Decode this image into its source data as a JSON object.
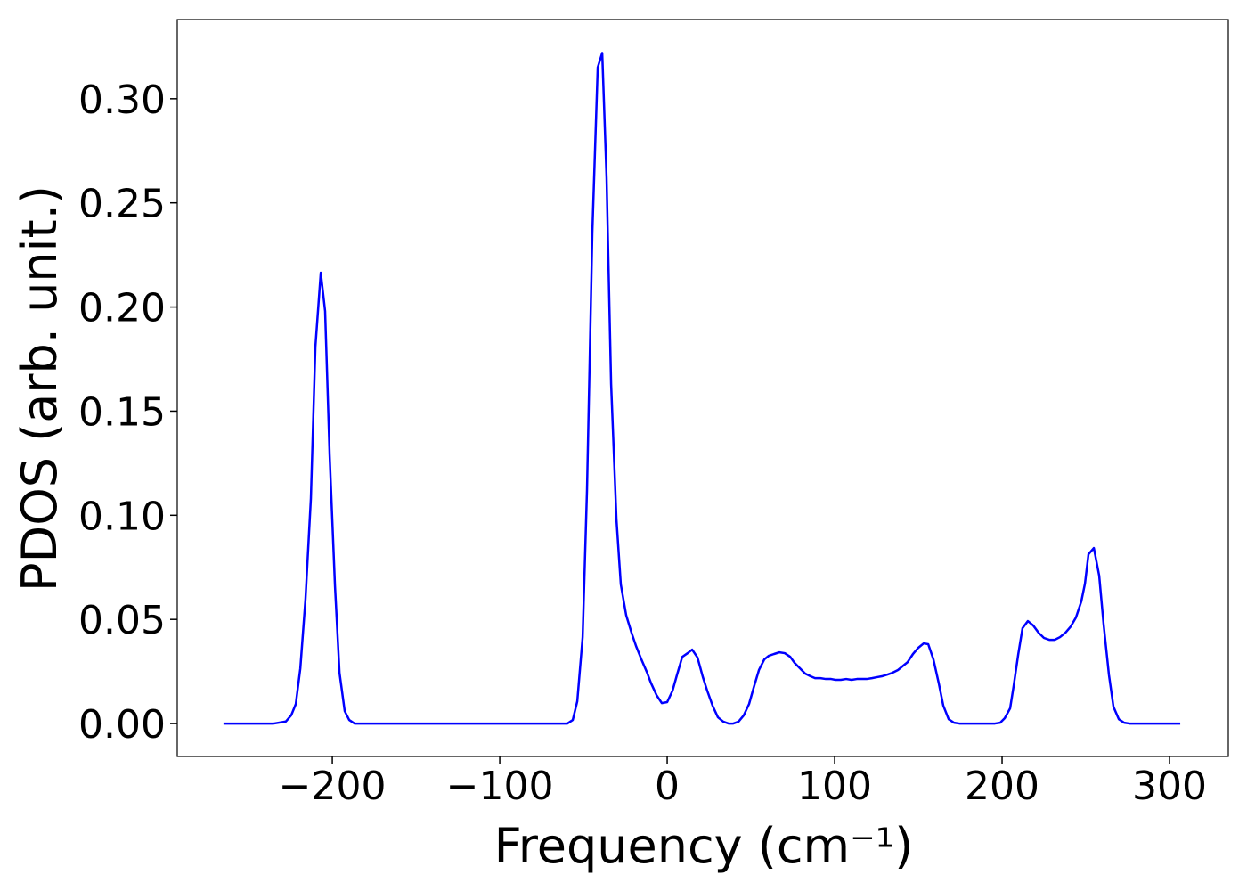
{
  "chart_data": {
    "type": "line",
    "x_label": "Frequency (cm⁻¹)",
    "y_label": "PDOS (arb. unit.)",
    "xlim": [
      -292.6,
      335.1
    ],
    "ylim": [
      -0.0158,
      0.338
    ],
    "xticks": [
      {
        "value": -200,
        "label": "−200"
      },
      {
        "value": -100,
        "label": "−100"
      },
      0,
      100,
      200,
      300
    ],
    "yticks": [
      {
        "value": 0,
        "label": "0.00"
      },
      {
        "value": 0.05,
        "label": "0.05"
      },
      {
        "value": 0.1,
        "label": "0.10"
      },
      {
        "value": 0.15,
        "label": "0.15"
      },
      {
        "value": 0.2,
        "label": "0.20"
      },
      {
        "value": 0.25,
        "label": "0.25"
      },
      {
        "value": 0.3,
        "label": "0.30"
      }
    ],
    "series": [
      {
        "color": "#0000ff",
        "x": [
          -265,
          -235,
          -227.7,
          -224.5,
          -221.8,
          -219.1,
          -216,
          -212.8,
          -210.1,
          -206.9,
          -204.3,
          -201.6,
          -198.4,
          -195.7,
          -192.6,
          -189.9,
          -186.7,
          -59.6,
          -56.4,
          -53.7,
          -50.5,
          -47.9,
          -44.7,
          -41.5,
          -38.8,
          -36.2,
          -33.5,
          -30.3,
          -27.7,
          -24.5,
          -21.3,
          -18.6,
          -15.4,
          -12.2,
          -9.6,
          -6.4,
          -3.2,
          0,
          3.2,
          5.9,
          9.0,
          12.2,
          14.9,
          18.1,
          21.3,
          23.9,
          27.1,
          30.3,
          33.5,
          36.7,
          39.4,
          42.6,
          45.7,
          48.9,
          51.6,
          54.8,
          58.0,
          60.6,
          63.8,
          67.0,
          70.2,
          73.4,
          76.1,
          79.3,
          82.4,
          85.6,
          88.3,
          91.5,
          94.7,
          97.9,
          100.5,
          103.7,
          106.9,
          110.1,
          113.3,
          116.0,
          119.1,
          122.3,
          125.5,
          128.2,
          131.4,
          134.6,
          137.8,
          140.4,
          143.6,
          146.8,
          150.0,
          153.2,
          155.9,
          159.0,
          162.2,
          164.9,
          168.1,
          171.3,
          174.5,
          195.7,
          198.9,
          201.6,
          204.8,
          206.9,
          209.6,
          212.2,
          215.4,
          218.6,
          221.8,
          225.0,
          228.2,
          231.4,
          234.6,
          237.8,
          241.0,
          244.1,
          247.3,
          249.5,
          251.6,
          254.8,
          258.0,
          260.6,
          263.8,
          266.5,
          269.7,
          272.9,
          276.1,
          306.4
        ],
        "values": [
          0,
          0,
          0.001,
          0.004,
          0.0094,
          0.0265,
          0.06,
          0.108,
          0.181,
          0.2165,
          0.198,
          0.129,
          0.066,
          0.0244,
          0.006,
          0.0017,
          0,
          0,
          0.0017,
          0.0107,
          0.0415,
          0.112,
          0.236,
          0.315,
          0.322,
          0.262,
          0.163,
          0.098,
          0.0668,
          0.052,
          0.0436,
          0.0372,
          0.0308,
          0.0248,
          0.0193,
          0.0137,
          0.0098,
          0.0103,
          0.0158,
          0.0235,
          0.032,
          0.0338,
          0.0355,
          0.0317,
          0.0223,
          0.0158,
          0.0086,
          0.003,
          0.0009,
          0,
          0,
          0.0009,
          0.0039,
          0.0094,
          0.0171,
          0.0257,
          0.0308,
          0.0325,
          0.0334,
          0.0342,
          0.0338,
          0.0321,
          0.0291,
          0.0265,
          0.024,
          0.0227,
          0.0218,
          0.0218,
          0.0214,
          0.0214,
          0.021,
          0.021,
          0.0214,
          0.021,
          0.0214,
          0.0214,
          0.0214,
          0.0218,
          0.0223,
          0.0227,
          0.0235,
          0.0244,
          0.0257,
          0.0274,
          0.0295,
          0.0334,
          0.0364,
          0.0385,
          0.0381,
          0.0308,
          0.0193,
          0.0086,
          0.0021,
          0.0004,
          0,
          0,
          0.0004,
          0.0026,
          0.0073,
          0.018,
          0.033,
          0.0458,
          0.0492,
          0.0471,
          0.0436,
          0.0411,
          0.0402,
          0.0402,
          0.0415,
          0.0436,
          0.0466,
          0.0509,
          0.0586,
          0.0672,
          0.0813,
          0.0843,
          0.071,
          0.0479,
          0.0235,
          0.0081,
          0.0021,
          0.0004,
          0,
          0
        ]
      }
    ]
  }
}
